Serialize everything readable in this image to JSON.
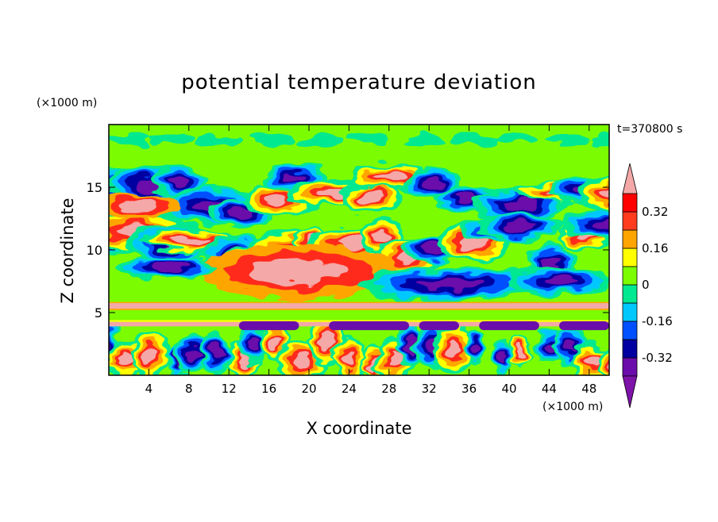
{
  "chart_data": {
    "type": "heatmap",
    "title": "potential temperature deviation",
    "xlabel": "X coordinate",
    "ylabel": "Z coordinate",
    "x_unit": "(×1000 m)",
    "y_unit": "(×1000 m)",
    "time_label": "t=370800 s",
    "xlim": [
      0,
      50
    ],
    "ylim": [
      0,
      20
    ],
    "x_ticks": [
      4,
      8,
      12,
      16,
      20,
      24,
      28,
      32,
      36,
      40,
      44,
      48
    ],
    "y_ticks": [
      5,
      10,
      15
    ],
    "colorbar": {
      "levels": [
        -0.4,
        -0.32,
        -0.24,
        -0.16,
        -0.08,
        0,
        0.08,
        0.16,
        0.24,
        0.32,
        0.4
      ],
      "tick_labels": [
        "0.32",
        "0.16",
        "0",
        "-0.16",
        "-0.32"
      ],
      "tick_values": [
        0.32,
        0.16,
        0,
        -0.16,
        -0.32
      ],
      "colors_low_to_high": [
        "#8b008b",
        "#6a0daa",
        "#0000a0",
        "#0050ff",
        "#00c8ff",
        "#00e890",
        "#7cfc00",
        "#ffff00",
        "#ffa500",
        "#ff3c1e",
        "#ff0000",
        "#f4a8a8"
      ],
      "under_color": "#7d13a8",
      "over_color": "#f4a8a8"
    },
    "bands": [
      {
        "z_range": [
          19.5,
          20
        ],
        "color": "#7cfc00"
      },
      {
        "z_range": [
          17.2,
          19.5
        ],
        "color": "#7cfc00"
      },
      {
        "z_range": [
          12.5,
          17.2
        ],
        "color": "mixed"
      },
      {
        "z_range": [
          7.5,
          12.5
        ],
        "color": "mixed"
      },
      {
        "z_range": [
          5.8,
          7.5
        ],
        "color": "mixed"
      },
      {
        "z_range": [
          5.3,
          5.8
        ],
        "color": "#f4a8a8"
      },
      {
        "z_range": [
          4.3,
          5.3
        ],
        "color": "#7cfc00"
      },
      {
        "z_range": [
          3.5,
          4.3
        ],
        "color": "mixed"
      },
      {
        "z_range": [
          0,
          3.5
        ],
        "color": "mixed"
      }
    ]
  }
}
